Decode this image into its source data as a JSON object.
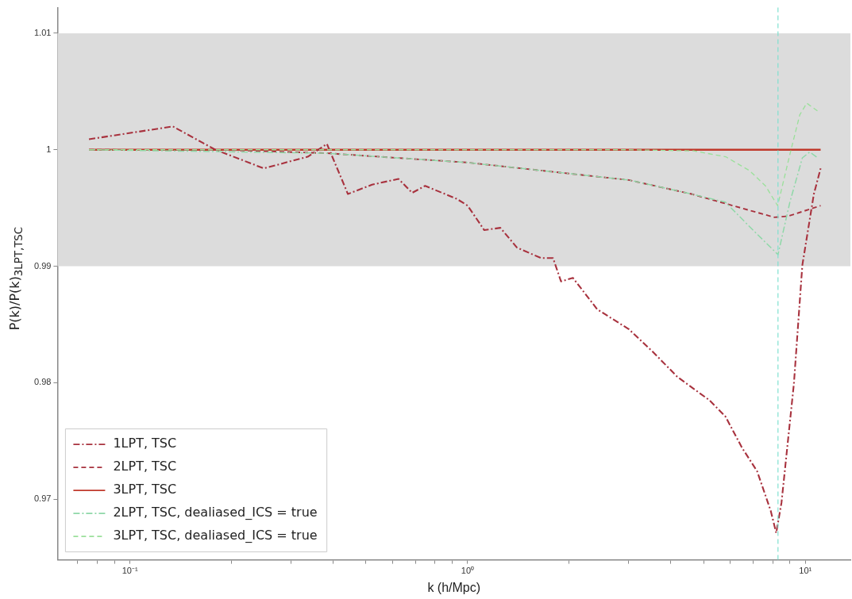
{
  "chart_data": {
    "type": "line",
    "xlabel": "k (h/Mpc)",
    "ylabel": "P(k)/P(k)$_{3LPT,TSC}$",
    "log": "x",
    "xlim": [
      0.061,
      13.6
    ],
    "ylim": [
      0.9648,
      1.0122
    ],
    "xticks": [
      {
        "value": 0.07,
        "label": null
      },
      {
        "value": 0.08,
        "label": null
      },
      {
        "value": 0.09,
        "label": null
      },
      {
        "value": 0.1,
        "label": "10⁻¹"
      },
      {
        "value": 0.2,
        "label": null
      },
      {
        "value": 0.3,
        "label": null
      },
      {
        "value": 0.4,
        "label": null
      },
      {
        "value": 0.5,
        "label": null
      },
      {
        "value": 0.6,
        "label": null
      },
      {
        "value": 0.7,
        "label": null
      },
      {
        "value": 0.8,
        "label": null
      },
      {
        "value": 0.9,
        "label": null
      },
      {
        "value": 1,
        "label": "10⁰"
      },
      {
        "value": 2,
        "label": null
      },
      {
        "value": 3,
        "label": null
      },
      {
        "value": 4,
        "label": null
      },
      {
        "value": 5,
        "label": null
      },
      {
        "value": 6,
        "label": null
      },
      {
        "value": 7,
        "label": null
      },
      {
        "value": 8,
        "label": null
      },
      {
        "value": 9,
        "label": null
      },
      {
        "value": 10,
        "label": "10¹"
      }
    ],
    "yticks": [
      0.97,
      0.98,
      0.99,
      1.0,
      1.01
    ],
    "grid": false,
    "legend": "bottom left",
    "bands": [
      {
        "axis": "y",
        "from": 0.99,
        "to": 1.01,
        "color": "#dcdcdc"
      }
    ],
    "ref_lines": [
      {
        "axis": "x",
        "value": 8.3,
        "color": "#80e0d0",
        "line_style": "dashed"
      }
    ],
    "series": [
      {
        "name": "1LPT, TSC",
        "color": "#a8323e",
        "line_style": "dashdot",
        "x": [
          0.0756,
          0.134,
          0.179,
          0.249,
          0.336,
          0.383,
          0.442,
          0.521,
          0.624,
          0.685,
          0.748,
          0.926,
          1.0,
          1.12,
          1.25,
          1.4,
          1.65,
          1.79,
          1.89,
          2.05,
          2.42,
          3.0,
          3.55,
          4.18,
          5.2,
          5.8,
          6.5,
          7.2,
          7.9,
          8.2,
          8.5,
          9.25,
          9.8,
          10.6,
          11.1
        ],
        "values": [
          1.0009,
          1.002,
          1.0,
          0.9984,
          0.9994,
          1.0005,
          0.9962,
          0.997,
          0.9975,
          0.9963,
          0.9969,
          0.9958,
          0.9952,
          0.9931,
          0.9933,
          0.9916,
          0.9907,
          0.9907,
          0.9887,
          0.989,
          0.9863,
          0.9846,
          0.9826,
          0.9805,
          0.9785,
          0.9771,
          0.9744,
          0.9724,
          0.969,
          0.9671,
          0.9697,
          0.9799,
          0.9901,
          0.9962,
          0.9984
        ]
      },
      {
        "name": "2LPT, TSC",
        "color": "#a8323e",
        "line_style": "dashed",
        "x": [
          0.0756,
          0.2,
          0.383,
          1.0,
          3.0,
          4.6,
          8.1,
          8.9,
          11.1
        ],
        "values": [
          1.0,
          0.99997,
          0.9997,
          0.9989,
          0.9974,
          0.9962,
          0.9942,
          0.9943,
          0.9952
        ]
      },
      {
        "name": "3LPT, TSC",
        "color": "#c0392b",
        "line_style": "solid",
        "x": [
          0.0756,
          11.1
        ],
        "values": [
          1.0,
          1.0
        ]
      },
      {
        "name": "2LPT, TSC, dealiased_ICS = true",
        "color": "#8fd8a8",
        "line_style": "dashdot",
        "x": [
          0.0756,
          0.383,
          1.0,
          3.0,
          4.6,
          5.8,
          7.0,
          8.3,
          9.0,
          9.8,
          10.3,
          10.9
        ],
        "values": [
          1.0,
          0.9997,
          0.9989,
          0.9974,
          0.9962,
          0.9955,
          0.9931,
          0.991,
          0.9955,
          0.9993,
          0.9998,
          0.9993
        ]
      },
      {
        "name": "3LPT, TSC, dealiased_ICS = true",
        "color": "#9ae09a",
        "line_style": "dashed",
        "x": [
          0.0756,
          3.01,
          4.67,
          5.81,
          6.84,
          7.62,
          8.28,
          9.0,
          9.63,
          10.1,
          10.9
        ],
        "values": [
          1.0,
          1.0,
          0.9999,
          0.9994,
          0.9982,
          0.9969,
          0.9952,
          0.9996,
          1.003,
          1.004,
          1.0033
        ]
      }
    ]
  }
}
